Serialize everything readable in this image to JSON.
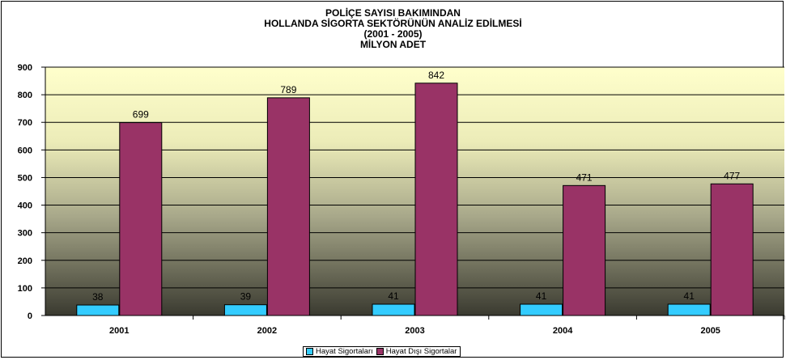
{
  "chart_data": {
    "type": "bar",
    "title_lines": [
      "POLİÇE SAYISI BAKIMINDAN",
      "HOLLANDA SİGORTA SEKTÖRÜNÜN ANALİZ EDİLMESİ",
      "(2001 - 2005)",
      "MİLYON ADET"
    ],
    "categories": [
      "2001",
      "2002",
      "2003",
      "2004",
      "2005"
    ],
    "series": [
      {
        "name": "Hayat Sigortaları",
        "values": [
          38,
          39,
          41,
          41,
          41
        ],
        "color": "#33CCFF"
      },
      {
        "name": "Hayat Dışı Sigortalar",
        "values": [
          699,
          789,
          842,
          471,
          477
        ],
        "color": "#993366"
      }
    ],
    "ylim": [
      0,
      900
    ],
    "yticks": [
      0,
      100,
      200,
      300,
      400,
      500,
      600,
      700,
      800,
      900
    ],
    "grid": true,
    "legend_position": "bottom",
    "data_labels": true,
    "plot_gradient": [
      "#FFFFCC",
      "#3A3A30"
    ]
  }
}
